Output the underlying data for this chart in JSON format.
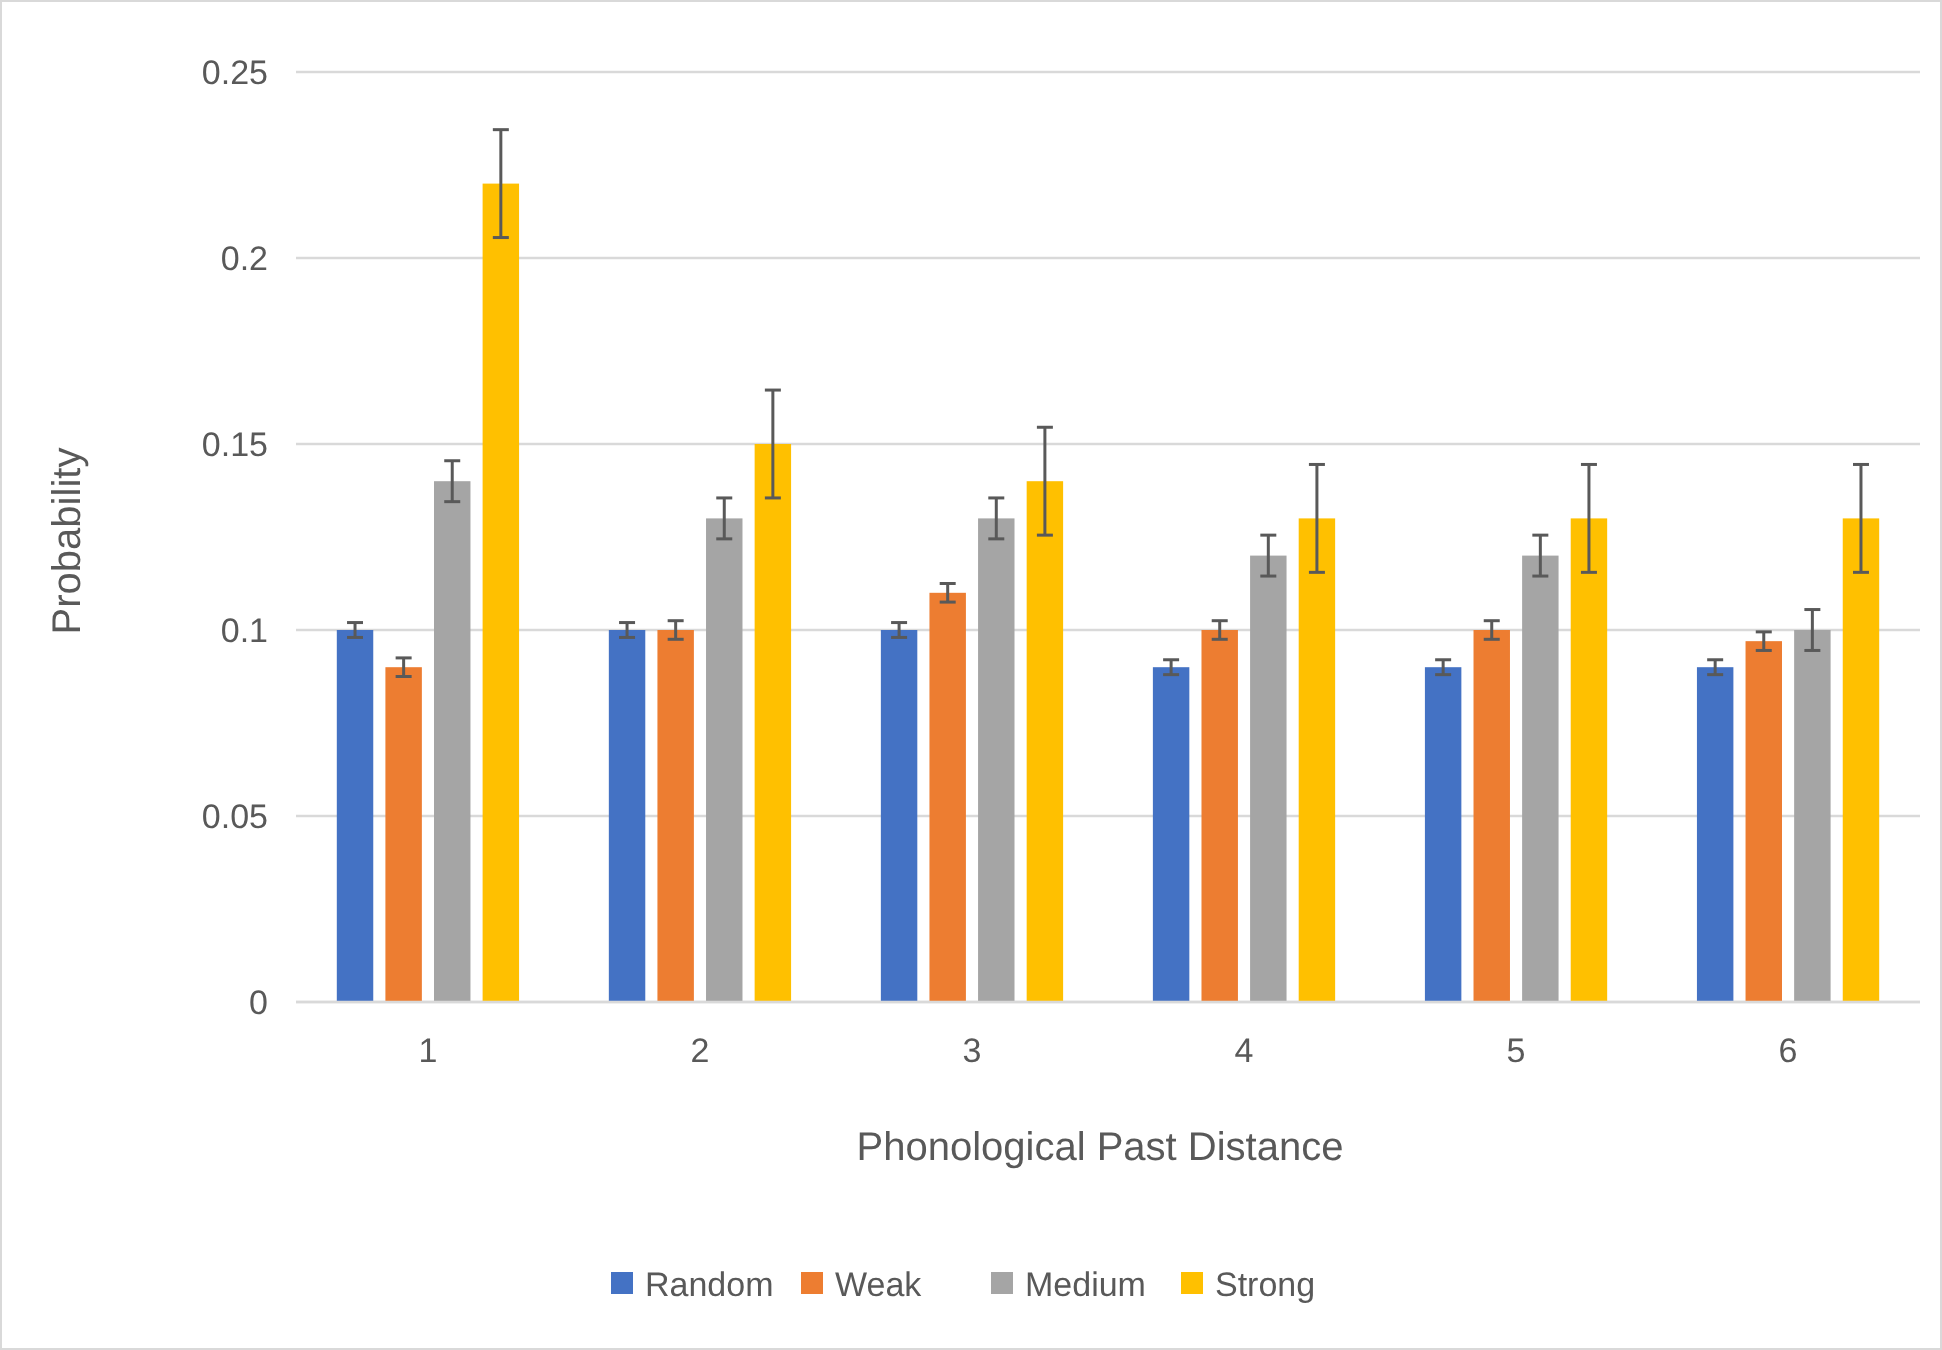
{
  "chart_data": {
    "type": "bar",
    "xlabel": "Phonological Past Distance",
    "ylabel": "Probability",
    "categories": [
      "1",
      "2",
      "3",
      "4",
      "5",
      "6"
    ],
    "ylim": [
      0,
      0.25
    ],
    "yticks": [
      {
        "value": 0,
        "label": "0"
      },
      {
        "value": 0.05,
        "label": "0.05"
      },
      {
        "value": 0.1,
        "label": "0.1"
      },
      {
        "value": 0.15,
        "label": "0.15"
      },
      {
        "value": 0.2,
        "label": "0.2"
      },
      {
        "value": 0.25,
        "label": "0.25"
      }
    ],
    "grid": "y",
    "legend": "bottom",
    "series": [
      {
        "name": "Random",
        "color": "#4472c4",
        "values": [
          0.1,
          0.1,
          0.1,
          0.09,
          0.09,
          0.09
        ],
        "errors": [
          0.002,
          0.002,
          0.002,
          0.002,
          0.002,
          0.002
        ]
      },
      {
        "name": "Weak",
        "color": "#ed7d31",
        "values": [
          0.09,
          0.1,
          0.11,
          0.1,
          0.1,
          0.097
        ],
        "errors": [
          0.0025,
          0.0025,
          0.0025,
          0.0025,
          0.0025,
          0.0025
        ]
      },
      {
        "name": "Medium",
        "color": "#a5a5a5",
        "values": [
          0.14,
          0.13,
          0.13,
          0.12,
          0.12,
          0.1
        ],
        "errors": [
          0.0055,
          0.0055,
          0.0055,
          0.0055,
          0.0055,
          0.0055
        ]
      },
      {
        "name": "Strong",
        "color": "#ffc000",
        "values": [
          0.22,
          0.15,
          0.14,
          0.13,
          0.13,
          0.13
        ],
        "errors": [
          0.0145,
          0.0145,
          0.0145,
          0.0145,
          0.0145,
          0.0145
        ]
      }
    ]
  }
}
